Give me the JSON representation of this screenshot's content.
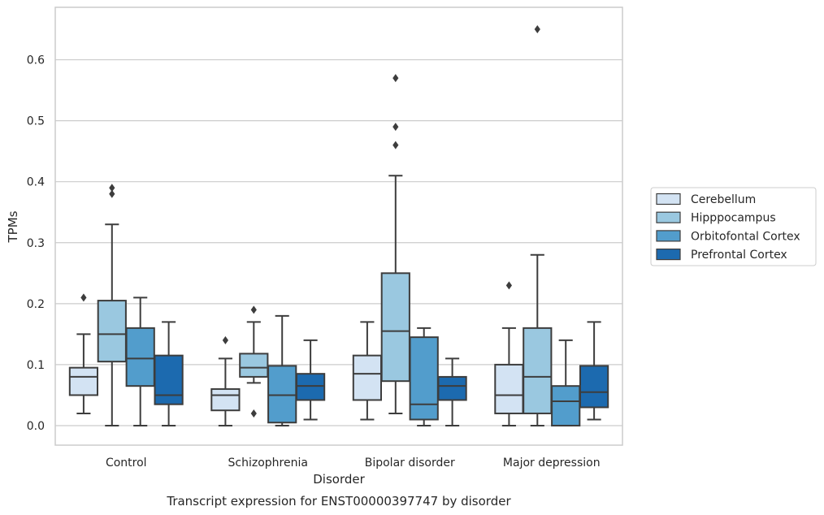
{
  "chart_data": {
    "type": "boxplot",
    "title": "",
    "caption": "Transcript expression for ENST00000397747 by disorder",
    "xlabel": "Disorder",
    "ylabel": "TPMs",
    "ylim": [
      -0.032,
      0.686
    ],
    "yticks": [
      0.0,
      0.1,
      0.2,
      0.3,
      0.4,
      0.5,
      0.6
    ],
    "ytick_labels": [
      "0.0",
      "0.1",
      "0.2",
      "0.3",
      "0.4",
      "0.5",
      "0.6"
    ],
    "grid": true,
    "legend_position": "right",
    "categories": [
      "Control",
      "Schizophrenia",
      "Bipolar disorder",
      "Major depression"
    ],
    "series": [
      {
        "name": "Cerebellum",
        "color": "#d3e3f3",
        "boxes": [
          {
            "whislo": 0.02,
            "q1": 0.05,
            "med": 0.08,
            "q3": 0.095,
            "whishi": 0.15,
            "fliers": [
              0.21
            ]
          },
          {
            "whislo": 0.0,
            "q1": 0.025,
            "med": 0.05,
            "q3": 0.06,
            "whishi": 0.11,
            "fliers": [
              0.14
            ]
          },
          {
            "whislo": 0.01,
            "q1": 0.042,
            "med": 0.085,
            "q3": 0.115,
            "whishi": 0.17,
            "fliers": []
          },
          {
            "whislo": 0.0,
            "q1": 0.02,
            "med": 0.05,
            "q3": 0.1,
            "whishi": 0.16,
            "fliers": [
              0.23
            ]
          }
        ]
      },
      {
        "name": "Hipppocampus",
        "color": "#9ac8e0",
        "boxes": [
          {
            "whislo": 0.0,
            "q1": 0.105,
            "med": 0.15,
            "q3": 0.205,
            "whishi": 0.33,
            "fliers": [
              0.38,
              0.39
            ]
          },
          {
            "whislo": 0.07,
            "q1": 0.08,
            "med": 0.095,
            "q3": 0.118,
            "whishi": 0.17,
            "fliers": [
              0.19,
              0.02
            ]
          },
          {
            "whislo": 0.02,
            "q1": 0.073,
            "med": 0.155,
            "q3": 0.25,
            "whishi": 0.41,
            "fliers": [
              0.46,
              0.49,
              0.57
            ]
          },
          {
            "whislo": 0.0,
            "q1": 0.02,
            "med": 0.08,
            "q3": 0.16,
            "whishi": 0.28,
            "fliers": [
              0.65
            ]
          }
        ]
      },
      {
        "name": "Orbitofontal Cortex",
        "color": "#529dcc",
        "boxes": [
          {
            "whislo": 0.0,
            "q1": 0.065,
            "med": 0.11,
            "q3": 0.16,
            "whishi": 0.21,
            "fliers": []
          },
          {
            "whislo": 0.0,
            "q1": 0.005,
            "med": 0.05,
            "q3": 0.098,
            "whishi": 0.18,
            "fliers": []
          },
          {
            "whislo": 0.0,
            "q1": 0.01,
            "med": 0.035,
            "q3": 0.145,
            "whishi": 0.16,
            "fliers": []
          },
          {
            "whislo": 0.0,
            "q1": 0.0,
            "med": 0.04,
            "q3": 0.065,
            "whishi": 0.14,
            "fliers": []
          }
        ]
      },
      {
        "name": "Prefrontal Cortex",
        "color": "#1c6aaf",
        "boxes": [
          {
            "whislo": 0.0,
            "q1": 0.035,
            "med": 0.05,
            "q3": 0.115,
            "whishi": 0.17,
            "fliers": []
          },
          {
            "whislo": 0.01,
            "q1": 0.042,
            "med": 0.065,
            "q3": 0.085,
            "whishi": 0.14,
            "fliers": []
          },
          {
            "whislo": 0.0,
            "q1": 0.042,
            "med": 0.065,
            "q3": 0.08,
            "whishi": 0.11,
            "fliers": []
          },
          {
            "whislo": 0.01,
            "q1": 0.03,
            "med": 0.055,
            "q3": 0.098,
            "whishi": 0.17,
            "fliers": []
          }
        ]
      }
    ]
  }
}
